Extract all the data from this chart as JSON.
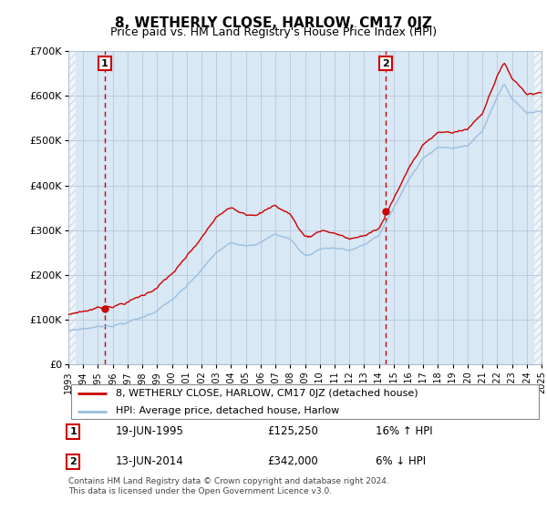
{
  "title": "8, WETHERLY CLOSE, HARLOW, CM17 0JZ",
  "subtitle": "Price paid vs. HM Land Registry's House Price Index (HPI)",
  "ylim": [
    0,
    700000
  ],
  "yticks": [
    0,
    100000,
    200000,
    300000,
    400000,
    500000,
    600000,
    700000
  ],
  "ytick_labels": [
    "£0",
    "£100K",
    "£200K",
    "£300K",
    "£400K",
    "£500K",
    "£600K",
    "£700K"
  ],
  "year_start": 1993,
  "year_end": 2025,
  "sale1_year": 1995.47,
  "sale1_price": 125250,
  "sale2_year": 2014.45,
  "sale2_price": 342000,
  "hpi_color": "#9bbfe0",
  "price_color": "#cc0000",
  "marker_color": "#cc0000",
  "bg_color": "#d8e8f4",
  "grid_color": "#b8c8d8",
  "legend_line1": "8, WETHERLY CLOSE, HARLOW, CM17 0JZ (detached house)",
  "legend_line2": "HPI: Average price, detached house, Harlow",
  "table_row1_label": "1",
  "table_row1_date": "19-JUN-1995",
  "table_row1_price": "£125,250",
  "table_row1_hpi": "16% ↑ HPI",
  "table_row2_label": "2",
  "table_row2_date": "13-JUN-2014",
  "table_row2_price": "£342,000",
  "table_row2_hpi": "6% ↓ HPI",
  "footer": "Contains HM Land Registry data © Crown copyright and database right 2024.\nThis data is licensed under the Open Government Licence v3.0.",
  "title_fontsize": 11,
  "subtitle_fontsize": 9
}
